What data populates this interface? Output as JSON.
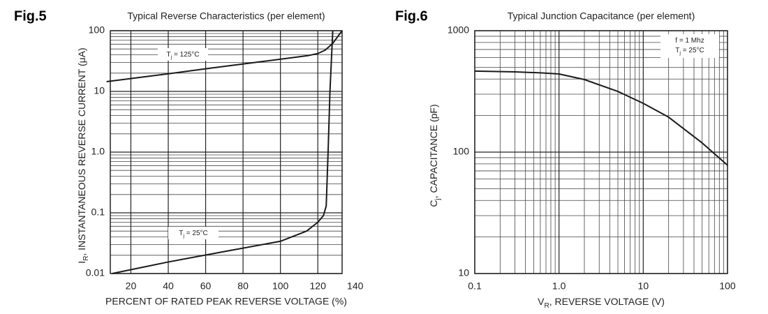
{
  "chart_data": [
    {
      "type": "line",
      "figure_label": "Fig.5",
      "title": "Typical Reverse Characteristics (per element)",
      "x_label": "PERCENT OF RATED PEAK  REVERSE VOLTAGE (%)",
      "y_label": {
        "text": "I",
        "sub": "R",
        "rest": ", INSTANTANEOUS REVERSE CURRENT (μA)"
      },
      "xscale": "linear",
      "yscale": "log",
      "grid": true,
      "minor_grid": true,
      "xlim": [
        9,
        133
      ],
      "xticks": [
        20,
        40,
        60,
        80,
        100,
        120,
        140
      ],
      "ylim": [
        0.01,
        100
      ],
      "yticks": [
        0.01,
        0.1,
        {
          "value": 1,
          "label": "1.0"
        },
        10,
        100
      ],
      "annotations": [
        {
          "text": "T",
          "sub": "j",
          "rest": " = 125°C"
        },
        {
          "text": "T",
          "sub": "j",
          "rest": " = 25°C"
        }
      ],
      "series": [
        {
          "color": "#1a1a1a",
          "x": [
            7,
            40,
            62,
            90,
            115,
            120,
            124,
            128,
            133
          ],
          "values": [
            14.5,
            19.5,
            24,
            31,
            39,
            42,
            48,
            62,
            100
          ]
        },
        {
          "color": "#1a1a1a",
          "x": [
            10,
            40,
            70,
            100,
            114,
            120,
            123,
            124.5,
            125.5,
            126.5,
            128
          ],
          "values": [
            0.01,
            0.0155,
            0.023,
            0.034,
            0.05,
            0.07,
            0.09,
            0.13,
            1.0,
            10,
            100
          ]
        }
      ]
    },
    {
      "type": "line",
      "figure_label": "Fig.6",
      "title": "Typical Junction Capacitance (per element)",
      "x_label": {
        "text": "V",
        "sub": "R",
        "rest": ", REVERSE VOLTAGE (V)"
      },
      "y_label": {
        "text": "C",
        "sub": "j",
        "rest": ", CAPACITANCE (pF)"
      },
      "xscale": "log",
      "yscale": "log",
      "grid": true,
      "minor_grid": true,
      "xlim": [
        0.1,
        100
      ],
      "xticks": [
        0.1,
        {
          "value": 1,
          "label": "1.0"
        },
        10,
        100
      ],
      "ylim": [
        10,
        1000
      ],
      "yticks": [
        10,
        100,
        1000
      ],
      "legend": [
        {
          "text": "f = 1 Mhz"
        },
        {
          "text": "T",
          "sub": "j",
          "rest": " = 25°C"
        }
      ],
      "series": [
        {
          "color": "#1a1a1a",
          "x": [
            0.1,
            0.3,
            0.6,
            1,
            2,
            5,
            10,
            20,
            50,
            100
          ],
          "values": [
            465,
            458,
            450,
            440,
            396,
            316,
            252,
            194,
            119,
            78
          ]
        }
      ]
    }
  ]
}
